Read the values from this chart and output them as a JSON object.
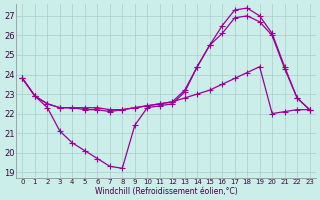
{
  "xlabel": "Windchill (Refroidissement éolien,°C)",
  "bg_color": "#cceee8",
  "grid_color": "#aacccc",
  "line_color": "#990099",
  "xlim": [
    -0.5,
    23.5
  ],
  "ylim": [
    18.7,
    27.6
  ],
  "yticks": [
    19,
    20,
    21,
    22,
    23,
    24,
    25,
    26,
    27
  ],
  "xticks": [
    0,
    1,
    2,
    3,
    4,
    5,
    6,
    7,
    8,
    9,
    10,
    11,
    12,
    13,
    14,
    15,
    16,
    17,
    18,
    19,
    20,
    21,
    22,
    23
  ],
  "line1_x": [
    0,
    1,
    2,
    3,
    4,
    5,
    6,
    7,
    8,
    9,
    10,
    11,
    12,
    13,
    14,
    15,
    16,
    17,
    18,
    19,
    20,
    21,
    22,
    23
  ],
  "line1_y": [
    23.8,
    22.9,
    22.5,
    22.3,
    22.3,
    22.2,
    22.2,
    22.1,
    22.2,
    22.3,
    22.4,
    22.5,
    22.6,
    22.8,
    23.0,
    23.2,
    23.5,
    23.8,
    24.1,
    24.4,
    22.0,
    22.1,
    22.2,
    22.2
  ],
  "line2_x": [
    0,
    1,
    2,
    3,
    4,
    5,
    6,
    7,
    8,
    9,
    10,
    11,
    12,
    13,
    14,
    15,
    16,
    17,
    18,
    19,
    20,
    21,
    22,
    23
  ],
  "line2_y": [
    23.8,
    22.9,
    22.5,
    22.3,
    22.3,
    22.3,
    22.3,
    22.2,
    22.2,
    22.3,
    22.4,
    22.5,
    22.6,
    23.2,
    24.4,
    25.5,
    26.1,
    26.9,
    27.0,
    26.7,
    26.0,
    24.3,
    22.8,
    22.2
  ],
  "line3_x": [
    0,
    1,
    2,
    3,
    4,
    5,
    6,
    7,
    8,
    9,
    10,
    11,
    12,
    13,
    14,
    15,
    16,
    17,
    18,
    19,
    20,
    21,
    22,
    23
  ],
  "line3_y": [
    23.8,
    22.9,
    22.3,
    21.1,
    20.5,
    20.1,
    19.7,
    19.3,
    19.2,
    21.4,
    22.3,
    22.4,
    22.5,
    23.1,
    24.4,
    25.5,
    26.5,
    27.3,
    27.4,
    27.0,
    26.1,
    24.4,
    22.8,
    22.2
  ]
}
